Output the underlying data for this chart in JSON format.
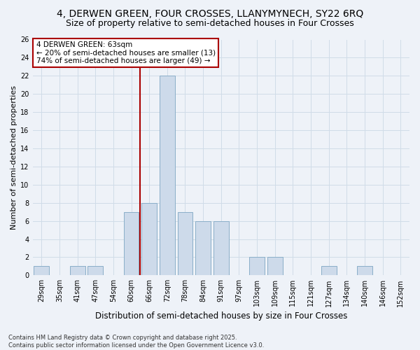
{
  "title": "4, DERWEN GREEN, FOUR CROSSES, LLANYMYNECH, SY22 6RQ",
  "subtitle": "Size of property relative to semi-detached houses in Four Crosses",
  "xlabel": "Distribution of semi-detached houses by size in Four Crosses",
  "ylabel": "Number of semi-detached properties",
  "footnote1": "Contains HM Land Registry data © Crown copyright and database right 2025.",
  "footnote2": "Contains public sector information licensed under the Open Government Licence v3.0.",
  "bins": [
    "29sqm",
    "35sqm",
    "41sqm",
    "47sqm",
    "54sqm",
    "60sqm",
    "66sqm",
    "72sqm",
    "78sqm",
    "84sqm",
    "91sqm",
    "97sqm",
    "103sqm",
    "109sqm",
    "115sqm",
    "121sqm",
    "127sqm",
    "134sqm",
    "140sqm",
    "146sqm",
    "152sqm"
  ],
  "bar_values": [
    1,
    0,
    1,
    1,
    0,
    7,
    8,
    22,
    7,
    6,
    6,
    0,
    2,
    2,
    0,
    0,
    1,
    0,
    1,
    0,
    0
  ],
  "bar_color": "#cddaea",
  "bar_edge_color": "#8aaec8",
  "grid_color": "#d0dce8",
  "background_color": "#eef2f8",
  "vline_color": "#aa0000",
  "annotation_text": "4 DERWEN GREEN: 63sqm\n← 20% of semi-detached houses are smaller (13)\n74% of semi-detached houses are larger (49) →",
  "annotation_box_color": "#ffffff",
  "annotation_box_edge": "#aa0000",
  "ylim": [
    0,
    26
  ],
  "yticks": [
    0,
    2,
    4,
    6,
    8,
    10,
    12,
    14,
    16,
    18,
    20,
    22,
    24,
    26
  ],
  "title_fontsize": 10,
  "subtitle_fontsize": 9,
  "ylabel_fontsize": 8,
  "xlabel_fontsize": 8.5,
  "tick_fontsize": 7,
  "annotation_fontsize": 7.5,
  "footnote_fontsize": 6
}
